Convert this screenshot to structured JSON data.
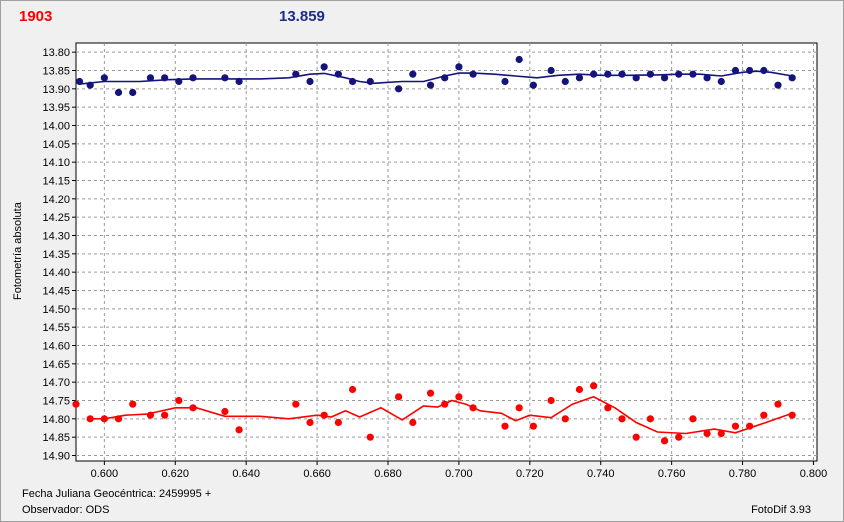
{
  "header": {
    "left_value": "1903",
    "right_value": "13.859"
  },
  "footer": {
    "jd_label": "Fecha Juliana Geocéntrica: 2459995 +",
    "observer_label": "Observador: ODS",
    "software": "FotoDif 3.93"
  },
  "colors": {
    "series_blue": "#14147c",
    "series_red": "#ff0000",
    "grid": "#9a9a9a",
    "plot_bg": "#ffffff"
  },
  "chart_data": {
    "type": "scatter",
    "title": "",
    "xlabel": "",
    "ylabel": "Fotometría absoluta",
    "xlim": [
      0.592,
      0.801
    ],
    "ylim": [
      13.775,
      14.915
    ],
    "y_inverted": true,
    "grid": true,
    "x_ticks": [
      "0.600",
      "0.620",
      "0.640",
      "0.660",
      "0.680",
      "0.700",
      "0.720",
      "0.740",
      "0.760",
      "0.780",
      "0.800"
    ],
    "y_ticks": [
      "13.80",
      "13.85",
      "13.90",
      "13.95",
      "14.00",
      "14.05",
      "14.10",
      "14.15",
      "14.20",
      "14.25",
      "14.30",
      "14.35",
      "14.40",
      "14.45",
      "14.50",
      "14.55",
      "14.60",
      "14.65",
      "14.70",
      "14.75",
      "14.80",
      "14.85",
      "14.90"
    ],
    "series": [
      {
        "color": "#14147c",
        "points": [
          [
            0.593,
            13.88
          ],
          [
            0.596,
            13.89
          ],
          [
            0.6,
            13.87
          ],
          [
            0.604,
            13.91
          ],
          [
            0.608,
            13.91
          ],
          [
            0.613,
            13.87
          ],
          [
            0.617,
            13.87
          ],
          [
            0.621,
            13.88
          ],
          [
            0.625,
            13.87
          ],
          [
            0.634,
            13.87
          ],
          [
            0.638,
            13.88
          ],
          [
            0.654,
            13.86
          ],
          [
            0.658,
            13.88
          ],
          [
            0.662,
            13.84
          ],
          [
            0.666,
            13.86
          ],
          [
            0.67,
            13.88
          ],
          [
            0.675,
            13.88
          ],
          [
            0.683,
            13.9
          ],
          [
            0.687,
            13.86
          ],
          [
            0.692,
            13.89
          ],
          [
            0.696,
            13.87
          ],
          [
            0.7,
            13.84
          ],
          [
            0.704,
            13.86
          ],
          [
            0.713,
            13.88
          ],
          [
            0.717,
            13.82
          ],
          [
            0.721,
            13.89
          ],
          [
            0.726,
            13.85
          ],
          [
            0.73,
            13.88
          ],
          [
            0.734,
            13.87
          ],
          [
            0.738,
            13.86
          ],
          [
            0.742,
            13.86
          ],
          [
            0.746,
            13.86
          ],
          [
            0.75,
            13.87
          ],
          [
            0.754,
            13.86
          ],
          [
            0.758,
            13.87
          ],
          [
            0.762,
            13.86
          ],
          [
            0.766,
            13.86
          ],
          [
            0.77,
            13.87
          ],
          [
            0.774,
            13.88
          ],
          [
            0.778,
            13.85
          ],
          [
            0.782,
            13.85
          ],
          [
            0.786,
            13.85
          ],
          [
            0.79,
            13.89
          ],
          [
            0.794,
            13.87
          ]
        ],
        "trend": [
          [
            0.593,
            13.887
          ],
          [
            0.6,
            13.88
          ],
          [
            0.61,
            13.88
          ],
          [
            0.618,
            13.875
          ],
          [
            0.625,
            13.873
          ],
          [
            0.634,
            13.873
          ],
          [
            0.644,
            13.873
          ],
          [
            0.652,
            13.87
          ],
          [
            0.658,
            13.86
          ],
          [
            0.662,
            13.858
          ],
          [
            0.668,
            13.87
          ],
          [
            0.672,
            13.88
          ],
          [
            0.676,
            13.885
          ],
          [
            0.684,
            13.88
          ],
          [
            0.69,
            13.88
          ],
          [
            0.696,
            13.865
          ],
          [
            0.7,
            13.857
          ],
          [
            0.704,
            13.857
          ],
          [
            0.71,
            13.86
          ],
          [
            0.716,
            13.865
          ],
          [
            0.722,
            13.87
          ],
          [
            0.728,
            13.863
          ],
          [
            0.734,
            13.86
          ],
          [
            0.74,
            13.863
          ],
          [
            0.748,
            13.863
          ],
          [
            0.756,
            13.862
          ],
          [
            0.762,
            13.86
          ],
          [
            0.768,
            13.86
          ],
          [
            0.774,
            13.865
          ],
          [
            0.78,
            13.855
          ],
          [
            0.784,
            13.852
          ],
          [
            0.788,
            13.855
          ],
          [
            0.794,
            13.865
          ]
        ]
      },
      {
        "color": "#ff0000",
        "points": [
          [
            0.592,
            14.76
          ],
          [
            0.596,
            14.8
          ],
          [
            0.6,
            14.8
          ],
          [
            0.604,
            14.8
          ],
          [
            0.608,
            14.76
          ],
          [
            0.613,
            14.79
          ],
          [
            0.617,
            14.79
          ],
          [
            0.621,
            14.75
          ],
          [
            0.625,
            14.77
          ],
          [
            0.634,
            14.78
          ],
          [
            0.638,
            14.83
          ],
          [
            0.654,
            14.76
          ],
          [
            0.658,
            14.81
          ],
          [
            0.662,
            14.79
          ],
          [
            0.666,
            14.81
          ],
          [
            0.67,
            14.72
          ],
          [
            0.675,
            14.85
          ],
          [
            0.683,
            14.74
          ],
          [
            0.687,
            14.81
          ],
          [
            0.692,
            14.73
          ],
          [
            0.696,
            14.76
          ],
          [
            0.7,
            14.74
          ],
          [
            0.704,
            14.77
          ],
          [
            0.713,
            14.82
          ],
          [
            0.717,
            14.77
          ],
          [
            0.721,
            14.82
          ],
          [
            0.726,
            14.75
          ],
          [
            0.73,
            14.8
          ],
          [
            0.734,
            14.72
          ],
          [
            0.738,
            14.71
          ],
          [
            0.742,
            14.77
          ],
          [
            0.746,
            14.8
          ],
          [
            0.75,
            14.85
          ],
          [
            0.754,
            14.8
          ],
          [
            0.758,
            14.86
          ],
          [
            0.762,
            14.85
          ],
          [
            0.766,
            14.8
          ],
          [
            0.77,
            14.84
          ],
          [
            0.774,
            14.84
          ],
          [
            0.778,
            14.82
          ],
          [
            0.782,
            14.82
          ],
          [
            0.786,
            14.79
          ],
          [
            0.79,
            14.76
          ],
          [
            0.794,
            14.79
          ]
        ],
        "trend": [
          [
            0.596,
            14.8
          ],
          [
            0.6,
            14.8
          ],
          [
            0.606,
            14.79
          ],
          [
            0.612,
            14.787
          ],
          [
            0.62,
            14.77
          ],
          [
            0.626,
            14.77
          ],
          [
            0.634,
            14.793
          ],
          [
            0.644,
            14.793
          ],
          [
            0.652,
            14.8
          ],
          [
            0.66,
            14.79
          ],
          [
            0.664,
            14.795
          ],
          [
            0.668,
            14.778
          ],
          [
            0.672,
            14.795
          ],
          [
            0.678,
            14.77
          ],
          [
            0.684,
            14.803
          ],
          [
            0.69,
            14.765
          ],
          [
            0.694,
            14.768
          ],
          [
            0.698,
            14.75
          ],
          [
            0.702,
            14.76
          ],
          [
            0.706,
            14.778
          ],
          [
            0.712,
            14.785
          ],
          [
            0.716,
            14.805
          ],
          [
            0.72,
            14.79
          ],
          [
            0.726,
            14.797
          ],
          [
            0.732,
            14.76
          ],
          [
            0.738,
            14.74
          ],
          [
            0.744,
            14.77
          ],
          [
            0.75,
            14.81
          ],
          [
            0.756,
            14.836
          ],
          [
            0.764,
            14.84
          ],
          [
            0.772,
            14.828
          ],
          [
            0.778,
            14.838
          ],
          [
            0.786,
            14.812
          ],
          [
            0.794,
            14.785
          ]
        ]
      }
    ]
  }
}
